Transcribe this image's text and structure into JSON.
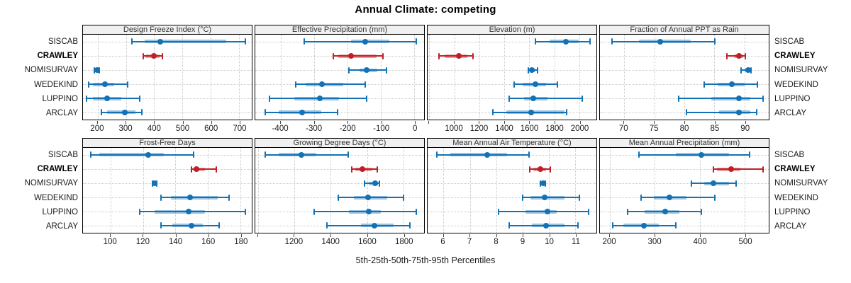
{
  "title": "Annual Climate: competing",
  "footer": "5th-25th-50th-75th-95th Percentiles",
  "colors": {
    "blue": "#1272b5",
    "blue_band": "rgba(18,114,181,0.42)",
    "red": "#bf2026",
    "red_band": "rgba(191,32,38,0.42)",
    "grid": "#c9c9c9",
    "strip_bg": "#f0f0f0",
    "border": "#000000"
  },
  "stations": [
    {
      "name": "SISCAB",
      "bold": false
    },
    {
      "name": "CRAWLEY",
      "bold": true
    },
    {
      "name": "NOMISURVAY",
      "bold": false
    },
    {
      "name": "WEDEKIND",
      "bold": false
    },
    {
      "name": "LUPPINO",
      "bold": false
    },
    {
      "name": "ARCLAY",
      "bold": false
    }
  ],
  "chart_data": {
    "type": "scatter",
    "subtype": "percentile-interval-dotplot",
    "percentiles": [
      5,
      25,
      50,
      75,
      95
    ],
    "rows": [
      "SISCAB",
      "CRAWLEY",
      "NOMISURVAY",
      "WEDEKIND",
      "LUPPINO",
      "ARCLAY"
    ],
    "highlight_row": "CRAWLEY",
    "layout": {
      "grid": "dotted",
      "panel_rows": 2,
      "panel_cols": 4,
      "row_labels": "both-sides"
    },
    "panels": [
      {
        "title": "Design Freeze Index (°C)",
        "xlim": [
          148,
          745
        ],
        "ticks": [
          200,
          300,
          400,
          500,
          600,
          700
        ],
        "tick_labels": [
          "200",
          "300",
          "400",
          "500",
          "600",
          "700"
        ],
        "values": {
          "SISCAB": [
            322,
            367,
            421,
            654,
            722
          ],
          "CRAWLEY": [
            360,
            368,
            398,
            419,
            429
          ],
          "NOMISURVAY": [
            189,
            193,
            197,
            201,
            205
          ],
          "WEDEKIND": [
            167,
            183,
            227,
            258,
            306
          ],
          "LUPPINO": [
            160,
            183,
            233,
            283,
            348
          ],
          "ARCLAY": [
            212,
            233,
            297,
            333,
            357
          ]
        }
      },
      {
        "title": "Effective Precipitation (mm)",
        "xlim": [
          -476,
          29
        ],
        "ticks": [
          -400,
          -300,
          -200,
          -100,
          0
        ],
        "tick_labels": [
          "-400",
          "-300",
          "-200",
          "-100",
          "0"
        ],
        "values": {
          "SISCAB": [
            -330,
            -190,
            -148,
            -75,
            5
          ],
          "CRAWLEY": [
            -243,
            -228,
            -189,
            -114,
            -95
          ],
          "NOMISURVAY": [
            -196,
            -165,
            -143,
            -110,
            -84
          ],
          "WEDEKIND": [
            -355,
            -325,
            -276,
            -213,
            -147
          ],
          "LUPPINO": [
            -433,
            -360,
            -283,
            -225,
            -143
          ],
          "ARCLAY": [
            -446,
            -405,
            -337,
            -278,
            -230
          ]
        }
      },
      {
        "title": "Elevation (m)",
        "xlim": [
          786,
          2138
        ],
        "ticks": [
          800,
          1000,
          1200,
          1400,
          1600,
          1800,
          2000
        ],
        "tick_labels": [
          "",
          "1000",
          "1200",
          "1400",
          "1600",
          "1800",
          "2000"
        ],
        "values": {
          "SISCAB": [
            1650,
            1762,
            1892,
            1997,
            2087
          ],
          "CRAWLEY": [
            876,
            923,
            1034,
            1105,
            1148
          ],
          "NOMISURVAY": [
            1590,
            1602,
            1620,
            1650,
            1669
          ],
          "WEDEKIND": [
            1481,
            1546,
            1648,
            1734,
            1828
          ],
          "LUPPINO": [
            1441,
            1556,
            1633,
            1744,
            2027
          ],
          "ARCLAY": [
            1306,
            1415,
            1616,
            1885,
            1900
          ]
        }
      },
      {
        "title": "Fraction of Annual PPT as Rain",
        "xlim": [
          66,
          94
        ],
        "ticks": [
          70,
          75,
          80,
          85,
          90
        ],
        "tick_labels": [
          "70",
          "75",
          "80",
          "85",
          "90"
        ],
        "values": {
          "SISCAB": [
            68,
            72.5,
            76,
            81,
            85
          ],
          "CRAWLEY": [
            87,
            88.2,
            89.1,
            89.8,
            90.1
          ],
          "NOMISURVAY": [
            89.4,
            90,
            90.6,
            90.9,
            91.1
          ],
          "WEDEKIND": [
            83.3,
            85.5,
            87.9,
            90,
            92.1
          ],
          "LUPPINO": [
            79,
            84.5,
            89,
            91,
            93.1
          ],
          "ARCLAY": [
            80.3,
            85.8,
            89,
            91,
            92
          ]
        }
      },
      {
        "title": "Frost-Free Days",
        "xlim": [
          83,
          187
        ],
        "ticks": [
          100,
          120,
          140,
          160,
          180
        ],
        "tick_labels": [
          "100",
          "120",
          "140",
          "160",
          "180"
        ],
        "values": {
          "SISCAB": [
            88,
            93,
            123,
            133,
            151
          ],
          "CRAWLEY": [
            150,
            151,
            153,
            158,
            165
          ],
          "NOMISURVAY": [
            125.8,
            126.5,
            127,
            127.7,
            128.3
          ],
          "WEDEKIND": [
            131,
            137,
            149,
            166,
            173
          ],
          "LUPPINO": [
            118,
            127,
            148,
            158,
            183
          ],
          "ARCLAY": [
            131,
            138,
            150,
            157,
            167
          ]
        }
      },
      {
        "title": "Growing Degree Days (°C)",
        "xlim": [
          986,
          1913
        ],
        "ticks": [
          1000,
          1200,
          1400,
          1600,
          1800
        ],
        "tick_labels": [
          "",
          "1200",
          "1400",
          "1600",
          "1800"
        ],
        "values": {
          "SISCAB": [
            1040,
            1115,
            1240,
            1320,
            1495
          ],
          "CRAWLEY": [
            1517,
            1536,
            1575,
            1628,
            1655
          ],
          "NOMISURVAY": [
            1586,
            1610,
            1645,
            1660,
            1667
          ],
          "WEDEKIND": [
            1442,
            1526,
            1606,
            1712,
            1799
          ],
          "LUPPINO": [
            1310,
            1500,
            1609,
            1674,
            1870
          ],
          "ARCLAY": [
            1378,
            1565,
            1642,
            1745,
            1835
          ]
        }
      },
      {
        "title": "Mean Annual Air Temperature (°C)",
        "xlim": [
          5.4,
          11.8
        ],
        "ticks": [
          6,
          7,
          8,
          9,
          10,
          11
        ],
        "tick_labels": [
          "6",
          "7",
          "8",
          "9",
          "10",
          "11"
        ],
        "values": {
          "SISCAB": [
            5.75,
            6.25,
            7.65,
            8.4,
            9.25
          ],
          "CRAWLEY": [
            9.28,
            9.42,
            9.68,
            9.9,
            10.05
          ],
          "NOMISURVAY": [
            9.67,
            9.72,
            9.77,
            9.82,
            9.87
          ],
          "WEDEKIND": [
            9.0,
            9.3,
            9.85,
            10.6,
            11.15
          ],
          "LUPPINO": [
            8.1,
            9.1,
            9.95,
            10.3,
            11.5
          ],
          "ARCLAY": [
            8.5,
            9.35,
            9.9,
            10.6,
            11.1
          ]
        }
      },
      {
        "title": "Mean Annual Precipitation (mm)",
        "xlim": [
          178,
          553
        ],
        "ticks": [
          200,
          300,
          400,
          500
        ],
        "tick_labels": [
          "200",
          "300",
          "400",
          "500"
        ],
        "values": {
          "SISCAB": [
            265,
            347,
            403,
            465,
            510
          ],
          "CRAWLEY": [
            430,
            438,
            469,
            490,
            540
          ],
          "NOMISURVAY": [
            382,
            410,
            430,
            465,
            481
          ],
          "WEDEKIND": [
            269,
            297,
            333,
            370,
            434
          ],
          "LUPPINO": [
            240,
            277,
            323,
            355,
            403
          ],
          "ARCLAY": [
            207,
            230,
            275,
            308,
            347
          ]
        }
      }
    ]
  }
}
